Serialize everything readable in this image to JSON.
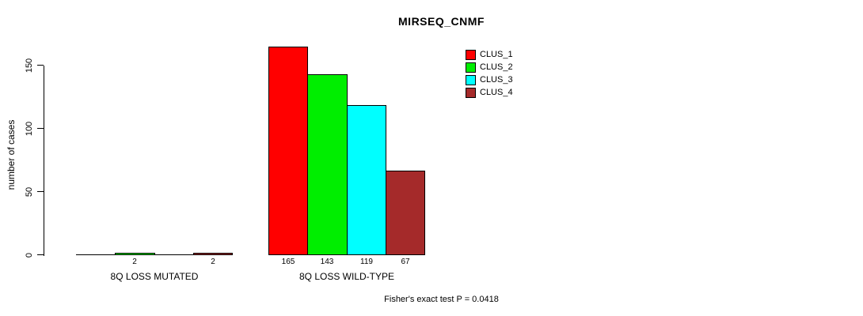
{
  "chart_data": {
    "type": "bar",
    "title": "MIRSEQ_CNMF",
    "ylabel": "number of cases",
    "xlabel": "",
    "categories": [
      "8Q LOSS MUTATED",
      "8Q LOSS WILD-TYPE"
    ],
    "series": [
      {
        "name": "CLUS_1",
        "color": "#ff0000",
        "values": [
          0,
          165
        ]
      },
      {
        "name": "CLUS_2",
        "color": "#00ee00",
        "values": [
          2,
          143
        ]
      },
      {
        "name": "CLUS_3",
        "color": "#00ffff",
        "values": [
          0,
          119
        ]
      },
      {
        "name": "CLUS_4",
        "color": "#a52a2a",
        "values": [
          2,
          67
        ]
      }
    ],
    "bar_value_labels": [
      [
        "",
        "2",
        "",
        "2"
      ],
      [
        "165",
        "143",
        "119",
        "67"
      ]
    ],
    "yticks": [
      0,
      50,
      100,
      150
    ],
    "ylim": [
      0,
      170
    ],
    "grid": false,
    "legend_position": "inside-top-right",
    "footnote": "Fisher's exact test P = 0.0418"
  }
}
